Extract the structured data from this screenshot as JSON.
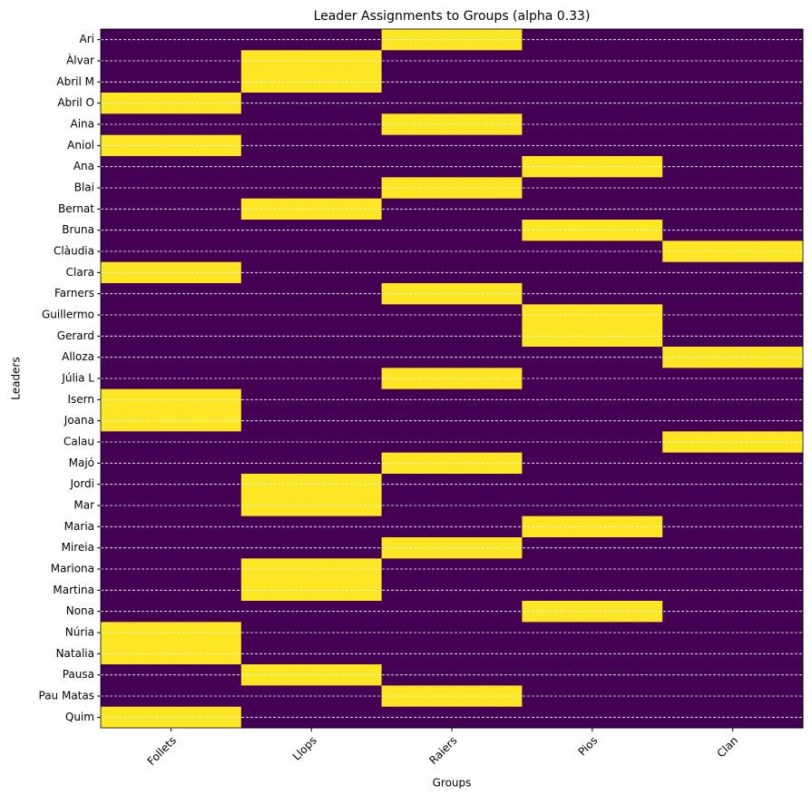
{
  "chart_data": {
    "type": "heatmap",
    "title": "Leader Assignments to Groups (alpha 0.33)",
    "x_label": "Groups",
    "y_label": "Leaders",
    "columns": [
      "Follets",
      "Llops",
      "Raiers",
      "Pios",
      "Clan"
    ],
    "rows": [
      "Ari",
      "Àlvar",
      "Abril M",
      "Abril O",
      "Aina",
      "Aniol",
      "Ana",
      "Blai",
      "Bernat",
      "Bruna",
      "Clàudia",
      "Clara",
      "Farners",
      "Guillermo",
      "Gerard",
      "Alloza",
      "Júlia L",
      "Isern",
      "Joana",
      "Calau",
      "Majó",
      "Jordi",
      "Mar",
      "Maria",
      "Mireia",
      "Mariona",
      "Martina",
      "Nona",
      "Núria",
      "Natalia",
      "Pausa",
      "Pau Matas",
      "Quim"
    ],
    "values": [
      [
        0,
        0,
        1,
        0,
        0
      ],
      [
        0,
        1,
        0,
        0,
        0
      ],
      [
        0,
        1,
        0,
        0,
        0
      ],
      [
        1,
        0,
        0,
        0,
        0
      ],
      [
        0,
        0,
        1,
        0,
        0
      ],
      [
        1,
        0,
        0,
        0,
        0
      ],
      [
        0,
        0,
        0,
        1,
        0
      ],
      [
        0,
        0,
        1,
        0,
        0
      ],
      [
        0,
        1,
        0,
        0,
        0
      ],
      [
        0,
        0,
        0,
        1,
        0
      ],
      [
        0,
        0,
        0,
        0,
        1
      ],
      [
        1,
        0,
        0,
        0,
        0
      ],
      [
        0,
        0,
        1,
        0,
        0
      ],
      [
        0,
        0,
        0,
        1,
        0
      ],
      [
        0,
        0,
        0,
        1,
        0
      ],
      [
        0,
        0,
        0,
        0,
        1
      ],
      [
        0,
        0,
        1,
        0,
        0
      ],
      [
        1,
        0,
        0,
        0,
        0
      ],
      [
        1,
        0,
        0,
        0,
        0
      ],
      [
        0,
        0,
        0,
        0,
        1
      ],
      [
        0,
        0,
        1,
        0,
        0
      ],
      [
        0,
        1,
        0,
        0,
        0
      ],
      [
        0,
        1,
        0,
        0,
        0
      ],
      [
        0,
        0,
        0,
        1,
        0
      ],
      [
        0,
        0,
        1,
        0,
        0
      ],
      [
        0,
        1,
        0,
        0,
        0
      ],
      [
        0,
        1,
        0,
        0,
        0
      ],
      [
        0,
        0,
        0,
        1,
        0
      ],
      [
        1,
        0,
        0,
        0,
        0
      ],
      [
        1,
        0,
        0,
        0,
        0
      ],
      [
        0,
        1,
        0,
        0,
        0
      ],
      [
        0,
        0,
        1,
        0,
        0
      ],
      [
        1,
        0,
        0,
        0,
        0
      ]
    ],
    "colors": [
      "#440154",
      "#fde725"
    ],
    "grid": true
  }
}
